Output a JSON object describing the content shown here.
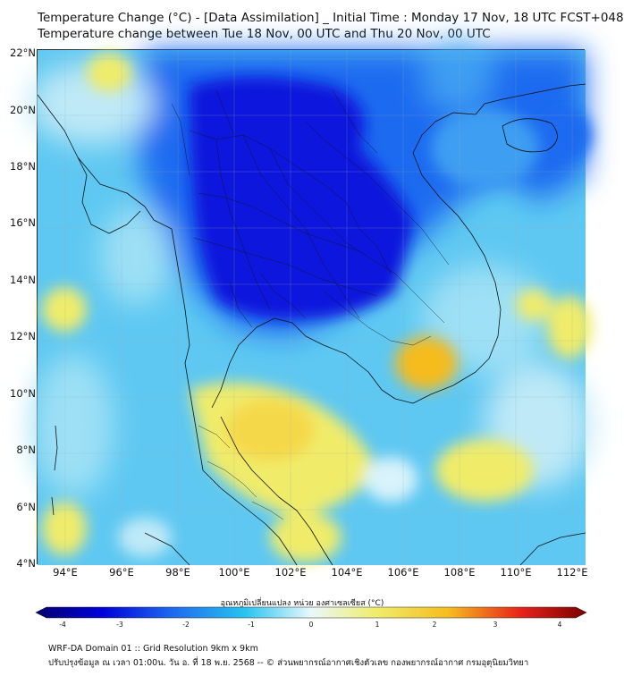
{
  "title_line1": "Temperature Change (°C) - [Data Assimilation] _ Initial Time : Monday 17 Nov, 18 UTC FCST+048",
  "title_line2": "Temperature change between Tue 18 Nov, 00 UTC and Thu 20 Nov, 00 UTC",
  "lat_labels": [
    "22°N",
    "20°N",
    "18°N",
    "16°N",
    "14°N",
    "12°N",
    "10°N",
    "8°N",
    "6°N",
    "4°N"
  ],
  "lon_labels": [
    "94°E",
    "96°E",
    "98°E",
    "100°E",
    "102°E",
    "104°E",
    "106°E",
    "108°E",
    "110°E",
    "112°E"
  ],
  "colorbar": {
    "title": "อุณหภูมิเปลี่ยนแปลง หน่วย องศาเซลเซียส (°C)",
    "ticks": [
      "-4",
      "-3",
      "-2",
      "-1",
      "0",
      "1",
      "2",
      "3",
      "4"
    ]
  },
  "footer_line1": "WRF-DA Domain 01 :: Grid Resolution 9km x 9km",
  "footer_line2": "ปรับปรุงข้อมูล ณ เวลา 01:00น. วัน อ. ที่ 18 พ.ย. 2568 -- © ส่วนพยากรณ์อากาศเชิงตัวเลข กองพยากรณ์อากาศ กรมอุตุนิยมวิทยา",
  "colors": {
    "strong_cooling": "#0a14dc",
    "cooling": "#1e6bf0",
    "mild_cooling": "#5ec8f2",
    "near_zero": "#d8f3fb",
    "warming": "#f0ec6a",
    "strong_warming": "#f5bc1e"
  }
}
